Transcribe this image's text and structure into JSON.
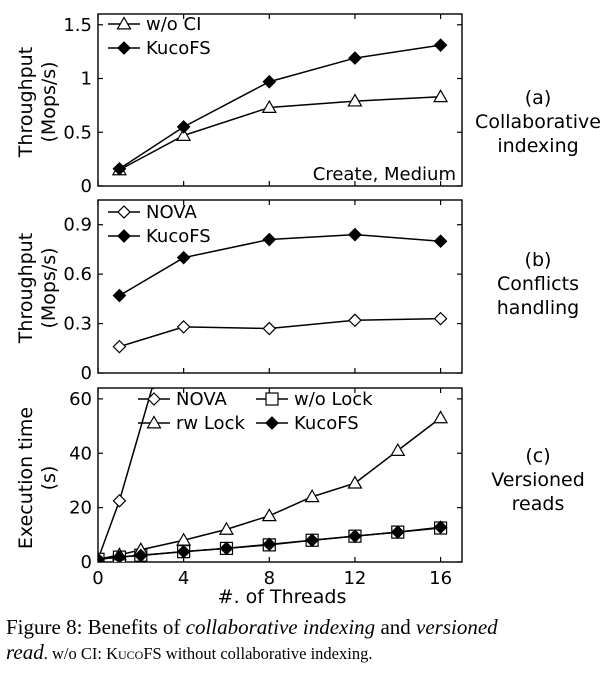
{
  "chart_data": [
    {
      "id": "a",
      "type": "line",
      "panel_label": "(a)",
      "side_label": [
        "Collaborative",
        "indexing"
      ],
      "ylabel": [
        "Throughput",
        "(Mops/s)"
      ],
      "annotation": "Create, Medium",
      "xlim": [
        0,
        17
      ],
      "ylim": [
        0,
        1.6
      ],
      "yticks": [
        0,
        0.5,
        1,
        1.5
      ],
      "ytick_labels": [
        "0",
        "0.5",
        "1",
        "1.5"
      ],
      "legend": "top-left",
      "series": [
        {
          "name": "w/o CI",
          "marker": "triangle",
          "x": [
            1,
            4,
            8,
            12,
            16
          ],
          "y": [
            0.15,
            0.47,
            0.73,
            0.79,
            0.83
          ]
        },
        {
          "name": "KucoFS",
          "marker": "diamond-filled",
          "x": [
            1,
            4,
            8,
            12,
            16
          ],
          "y": [
            0.16,
            0.55,
            0.97,
            1.19,
            1.31
          ]
        }
      ]
    },
    {
      "id": "b",
      "type": "line",
      "panel_label": "(b)",
      "side_label": [
        "Conflicts",
        "handling"
      ],
      "ylabel": [
        "Throughput",
        "(Mops/s)"
      ],
      "xlim": [
        0,
        17
      ],
      "ylim": [
        0,
        1.05
      ],
      "yticks": [
        0,
        0.3,
        0.6,
        0.9
      ],
      "ytick_labels": [
        "0",
        "0.3",
        "0.6",
        "0.9"
      ],
      "legend": "top-left",
      "series": [
        {
          "name": "NOVA",
          "marker": "diamond-open",
          "x": [
            1,
            4,
            8,
            12,
            16
          ],
          "y": [
            0.16,
            0.28,
            0.27,
            0.32,
            0.33
          ]
        },
        {
          "name": "KucoFS",
          "marker": "diamond-filled",
          "x": [
            1,
            4,
            8,
            12,
            16
          ],
          "y": [
            0.47,
            0.7,
            0.81,
            0.84,
            0.8
          ]
        }
      ]
    },
    {
      "id": "c",
      "type": "line",
      "panel_label": "(c)",
      "side_label": [
        "Versioned",
        "reads"
      ],
      "ylabel": [
        "Execution time",
        "(s)"
      ],
      "xlabel": "#. of Threads",
      "xlim": [
        0,
        17
      ],
      "ylim": [
        0,
        64
      ],
      "xticks": [
        0,
        4,
        8,
        12,
        16
      ],
      "xtick_labels": [
        "0",
        "4",
        "8",
        "12",
        "16"
      ],
      "yticks": [
        0,
        20,
        40,
        60
      ],
      "ytick_labels": [
        "0",
        "20",
        "40",
        "60"
      ],
      "legend": "top",
      "series": [
        {
          "name": "NOVA",
          "marker": "diamond-open",
          "x": [
            0,
            1,
            2.6
          ],
          "y": [
            1,
            22.5,
            66
          ]
        },
        {
          "name": "w/o Lock",
          "marker": "square-open",
          "x": [
            0,
            1,
            2,
            4,
            6,
            8,
            10,
            12,
            14,
            16
          ],
          "y": [
            1,
            1.8,
            2.5,
            3.8,
            5,
            6.3,
            8,
            9.5,
            11,
            12.5
          ]
        },
        {
          "name": "rw Lock",
          "marker": "triangle",
          "x": [
            0,
            1,
            2,
            4,
            6,
            8,
            10,
            12,
            14,
            16
          ],
          "y": [
            1,
            2.6,
            4.5,
            8,
            12,
            17,
            24,
            29,
            41,
            53
          ]
        },
        {
          "name": "KucoFS",
          "marker": "diamond-filled",
          "x": [
            0,
            1,
            2,
            4,
            6,
            8,
            10,
            12,
            14,
            16
          ],
          "y": [
            1,
            1.8,
            2.4,
            3.8,
            5,
            6.5,
            8,
            9.5,
            11,
            12.8
          ]
        }
      ]
    }
  ],
  "caption": {
    "line1_prefix": "Figure 8: Benefits of ",
    "line1_em1": "collaborative indexing",
    "line1_mid": " and ",
    "line1_em2": "versioned",
    "line2_em": "read",
    "line2_rest1": ". w/o CI: ",
    "line2_sc": "KucoFS",
    "line2_rest2": " without collaborative indexing."
  }
}
